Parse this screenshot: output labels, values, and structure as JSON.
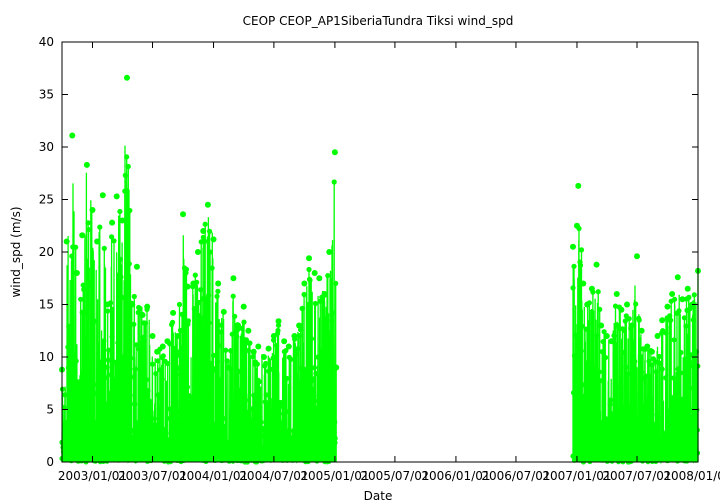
{
  "chart_data": {
    "type": "scatter",
    "title": "CEOP CEOP_AP1SiberiaTundra Tiksi  wind_spd",
    "xlabel": "Date",
    "ylabel": "wind_spd (m/s)",
    "xlim": [
      "2002-10-01",
      "2008-01-01"
    ],
    "ylim": [
      0,
      40
    ],
    "yticks": [
      0,
      5,
      10,
      15,
      20,
      25,
      30,
      35,
      40
    ],
    "xticks": [
      "2003/01/01",
      "2003/07/01",
      "2004/01/01",
      "2004/07/01",
      "2005/01/01",
      "2005/07/01",
      "2006/01/01",
      "2006/07/01",
      "2007/01/01",
      "2007/07/01",
      "2008/01/01"
    ],
    "xtick_labels": [
      "2003/01/01",
      "2003/07/01",
      "2004/01/01",
      "2004/07/01",
      "2005/01/01",
      "2005/07/01",
      "2006/01/01",
      "2006/07/01",
      "2007/01/01",
      "2007/07/01",
      "2008/01/01"
    ],
    "grid": false,
    "series": [
      {
        "color": "#00ff00",
        "segments": [
          {
            "x": [
              "2002-10-01",
              "2002-10-15",
              "2002-11-01",
              "2002-11-15",
              "2002-12-01",
              "2002-12-15",
              "2003-01-01",
              "2003-01-15",
              "2003-02-01",
              "2003-02-15",
              "2003-03-01",
              "2003-03-15",
              "2003-04-01",
              "2003-04-15",
              "2003-05-01",
              "2003-05-15",
              "2003-06-01",
              "2003-06-15",
              "2003-07-01",
              "2003-07-15",
              "2003-08-01",
              "2003-08-15",
              "2003-09-01",
              "2003-09-15",
              "2003-10-01",
              "2003-10-15",
              "2003-11-01",
              "2003-11-15",
              "2003-12-01",
              "2003-12-15",
              "2004-01-01",
              "2004-01-15",
              "2004-02-01",
              "2004-02-15",
              "2004-03-01",
              "2004-03-15",
              "2004-04-01",
              "2004-04-15",
              "2004-05-01",
              "2004-05-15",
              "2004-06-01",
              "2004-06-15",
              "2004-07-01",
              "2004-07-15",
              "2004-08-01",
              "2004-08-15",
              "2004-09-01",
              "2004-09-15",
              "2004-10-01",
              "2004-10-15",
              "2004-11-01",
              "2004-11-15",
              "2004-12-01",
              "2004-12-15",
              "2005-01-01",
              "2005-01-05"
            ],
            "y": [
              8.8,
              21.0,
              31.1,
              18.0,
              21.6,
              28.3,
              24.0,
              21.0,
              25.4,
              15.0,
              22.8,
              25.3,
              23.0,
              36.6,
              15.0,
              18.6,
              14.0,
              14.8,
              12.0,
              10.5,
              11.0,
              11.5,
              14.2,
              12.0,
              23.6,
              16.7,
              17.0,
              20.0,
              22.0,
              24.5,
              21.2,
              17.0,
              14.3,
              9.0,
              17.5,
              13.0,
              14.8,
              12.5,
              10.5,
              11.0,
              10.0,
              10.8,
              12.0,
              13.4,
              11.5,
              11.0,
              12.0,
              13.0,
              17.0,
              19.4,
              18.0,
              17.5,
              16.0,
              20.0,
              29.5,
              9.0
            ]
          },
          {
            "x": [
              "2006-12-20",
              "2007-01-01",
              "2007-01-05",
              "2007-01-20",
              "2007-02-01",
              "2007-02-15",
              "2007-03-01",
              "2007-03-15",
              "2007-04-01",
              "2007-04-15",
              "2007-05-01",
              "2007-05-15",
              "2007-06-01",
              "2007-06-15",
              "2007-07-01",
              "2007-07-15",
              "2007-08-01",
              "2007-08-15",
              "2007-09-01",
              "2007-09-15",
              "2007-10-01",
              "2007-10-15",
              "2007-11-01",
              "2007-11-15",
              "2007-12-01",
              "2007-12-15",
              "2008-01-01"
            ],
            "y": [
              20.5,
              22.5,
              26.3,
              17.0,
              15.0,
              16.5,
              18.8,
              13.0,
              12.0,
              11.5,
              16.0,
              14.5,
              15.0,
              13.0,
              19.6,
              12.5,
              11.0,
              10.5,
              12.0,
              13.5,
              14.8,
              16.0,
              17.6,
              15.5,
              16.5,
              15.0,
              18.2
            ]
          }
        ]
      }
    ]
  }
}
